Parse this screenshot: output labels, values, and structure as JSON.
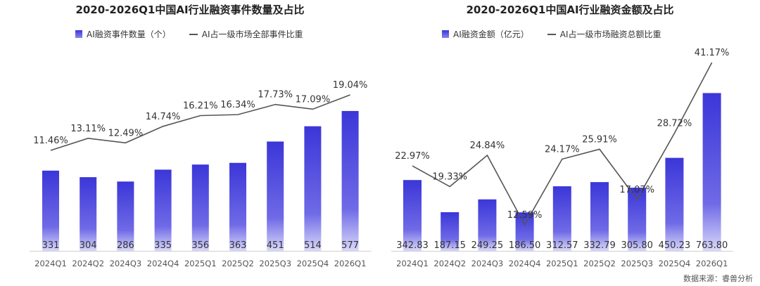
{
  "chart_data": [
    {
      "type": "bar",
      "title": "2020-2026Q1中国AI行业融资事件数量及占比",
      "categories": [
        "2024Q1",
        "2024Q2",
        "2024Q3",
        "2024Q4",
        "2025Q1",
        "2025Q2",
        "2025Q3",
        "2025Q4",
        "2026Q1"
      ],
      "series": [
        {
          "name": "AI融资事件数量（个）",
          "type": "bar",
          "values": [
            331,
            304,
            286,
            335,
            356,
            363,
            451,
            514,
            577
          ],
          "labels": [
            "331",
            "304",
            "286",
            "335",
            "356",
            "363",
            "451",
            "514",
            "577"
          ]
        },
        {
          "name": "AI占一级市场全部事件比重",
          "type": "line",
          "values": [
            11.46,
            13.11,
            12.49,
            14.74,
            16.21,
            16.34,
            17.73,
            17.09,
            19.04
          ],
          "labels": [
            "11.46%",
            "13.11%",
            "12.49%",
            "14.74%",
            "16.21%",
            "16.34%",
            "17.73%",
            "17.09%",
            "19.04%"
          ]
        }
      ],
      "bar_color": "#3b36d8",
      "line_color": "#555555"
    },
    {
      "type": "bar",
      "title": "2020-2026Q1中国AI行业融资金额及占比",
      "categories": [
        "2024Q1",
        "2024Q2",
        "2024Q3",
        "2024Q4",
        "2025Q1",
        "2025Q2",
        "2025Q3",
        "2025Q4",
        "2026Q1"
      ],
      "series": [
        {
          "name": "AI融资金额（亿元）",
          "type": "bar",
          "values": [
            342.83,
            187.15,
            249.25,
            186.5,
            312.57,
            332.79,
            305.8,
            450.23,
            763.8
          ],
          "labels": [
            "342.83",
            "187.15",
            "249.25",
            "186.50",
            "312.57",
            "332.79",
            "305.80",
            "450.23",
            "763.80"
          ]
        },
        {
          "name": "AI占一级市场融资总额比重",
          "type": "line",
          "values": [
            22.97,
            19.33,
            24.84,
            12.59,
            24.17,
            25.91,
            17.07,
            28.72,
            41.17
          ],
          "labels": [
            "22.97%",
            "19.33%",
            "24.84%",
            "12.59%",
            "24.17%",
            "25.91%",
            "17.07%",
            "28.72%",
            "41.17%"
          ]
        }
      ],
      "bar_color": "#3b36d8",
      "line_color": "#555555"
    }
  ],
  "source": "数据来源：睿兽分析"
}
